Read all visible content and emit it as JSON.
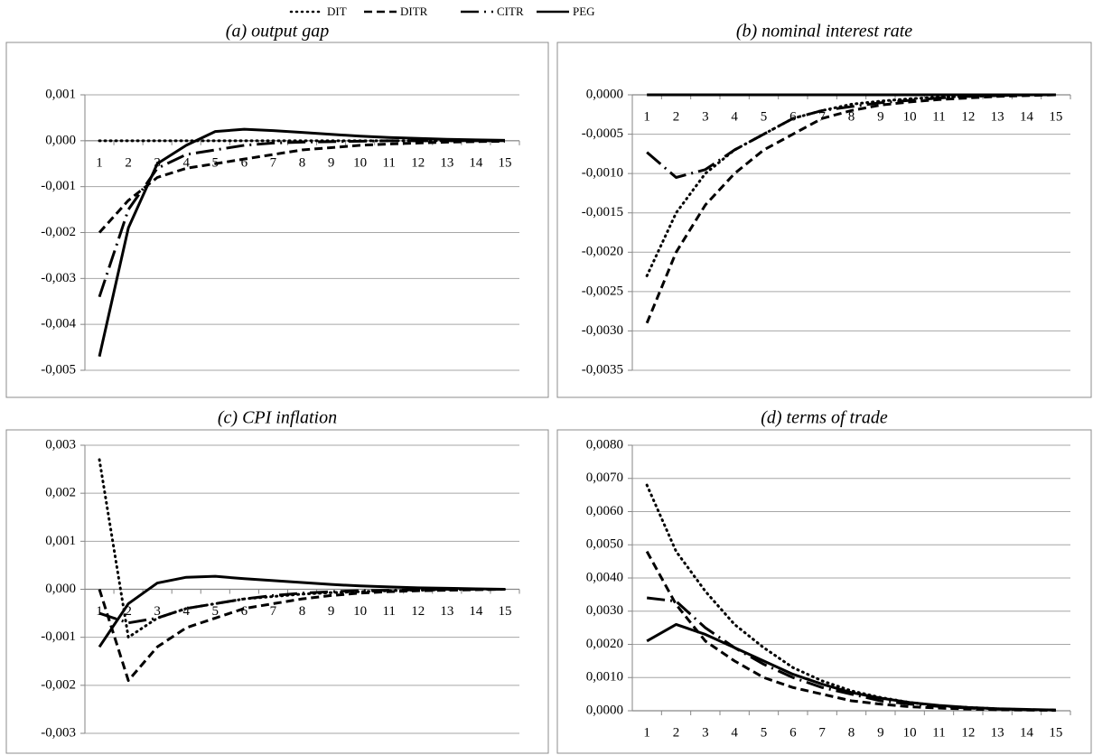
{
  "chart_data": [
    {
      "type": "line",
      "title": "(a) output gap",
      "categories": [
        "1",
        "2",
        "3",
        "4",
        "5",
        "6",
        "7",
        "8",
        "9",
        "10",
        "11",
        "12",
        "13",
        "14",
        "15"
      ],
      "ylim": [
        -0.005,
        0.001
      ],
      "yticks": [
        {
          "value": -0.005,
          "label": "-0,005"
        },
        {
          "value": -0.004,
          "label": "-0,004"
        },
        {
          "value": -0.003,
          "label": "-0,003"
        },
        {
          "value": -0.002,
          "label": "-0,002"
        },
        {
          "value": -0.001,
          "label": "-0,001"
        },
        {
          "value": 0,
          "label": "0,000"
        },
        {
          "value": 0.001,
          "label": "0,001"
        }
      ],
      "grid": true,
      "series": [
        {
          "name": "DIT",
          "color": "#000000",
          "dash": "dot",
          "values": [
            0,
            0,
            0,
            0,
            0,
            0,
            0,
            0,
            0,
            0,
            0,
            0,
            0,
            0,
            0
          ]
        },
        {
          "name": "DITR",
          "color": "#000000",
          "dash": "dash",
          "values": [
            -0.002,
            -0.0013,
            -0.0008,
            -0.0006,
            -0.0005,
            -0.0004,
            -0.0003,
            -0.0002,
            -0.00015,
            -0.0001,
            -7e-05,
            -5e-05,
            -3e-05,
            -2e-05,
            -1e-05
          ]
        },
        {
          "name": "CITR",
          "color": "#000000",
          "dash": "longdash-dot",
          "values": [
            -0.0034,
            -0.0015,
            -0.0006,
            -0.0003,
            -0.0002,
            -0.0001,
            -5e-05,
            -3e-05,
            -2e-05,
            -1e-05,
            0,
            0,
            0,
            0,
            0
          ]
        },
        {
          "name": "PEG",
          "color": "#000000",
          "dash": "solid",
          "values": [
            -0.0047,
            -0.0019,
            -0.0005,
            -0.0001,
            0.0002,
            0.00025,
            0.00022,
            0.00018,
            0.00014,
            0.0001,
            7e-05,
            5e-05,
            3e-05,
            2e-05,
            1e-05
          ]
        }
      ]
    },
    {
      "type": "line",
      "title": "(b) nominal interest rate",
      "categories": [
        "1",
        "2",
        "3",
        "4",
        "5",
        "6",
        "7",
        "8",
        "9",
        "10",
        "11",
        "12",
        "13",
        "14",
        "15"
      ],
      "ylim": [
        -0.0035,
        0
      ],
      "yticks": [
        {
          "value": -0.0035,
          "label": "-0,0035"
        },
        {
          "value": -0.003,
          "label": "-0,0030"
        },
        {
          "value": -0.0025,
          "label": "-0,0025"
        },
        {
          "value": -0.002,
          "label": "-0,0020"
        },
        {
          "value": -0.0015,
          "label": "-0,0015"
        },
        {
          "value": -0.001,
          "label": "-0,0010"
        },
        {
          "value": -0.0005,
          "label": "-0,0005"
        },
        {
          "value": 0,
          "label": "0,0000"
        }
      ],
      "grid": true,
      "series": [
        {
          "name": "DIT",
          "color": "#000000",
          "dash": "dot",
          "values": [
            -0.0023,
            -0.0015,
            -0.001,
            -0.0007,
            -0.0005,
            -0.0003,
            -0.0002,
            -0.00012,
            -8e-05,
            -5e-05,
            -3e-05,
            -2e-05,
            -1e-05,
            0,
            0
          ]
        },
        {
          "name": "DITR",
          "color": "#000000",
          "dash": "dash",
          "values": [
            -0.0029,
            -0.002,
            -0.0014,
            -0.001,
            -0.0007,
            -0.0005,
            -0.0003,
            -0.0002,
            -0.00013,
            -9e-05,
            -6e-05,
            -4e-05,
            -2e-05,
            -1e-05,
            0
          ]
        },
        {
          "name": "CITR",
          "color": "#000000",
          "dash": "longdash-dot",
          "values": [
            -0.00073,
            -0.00105,
            -0.00095,
            -0.0007,
            -0.0005,
            -0.0003,
            -0.0002,
            -0.00015,
            -0.0001,
            -7e-05,
            -4e-05,
            -2e-05,
            -1e-05,
            0,
            0
          ]
        },
        {
          "name": "PEG",
          "color": "#000000",
          "dash": "solid",
          "values": [
            0,
            0,
            0,
            0,
            0,
            0,
            0,
            0,
            0,
            0,
            0,
            0,
            0,
            0,
            0
          ]
        }
      ]
    },
    {
      "type": "line",
      "title": "(c) CPI inflation",
      "categories": [
        "1",
        "2",
        "3",
        "4",
        "5",
        "6",
        "7",
        "8",
        "9",
        "10",
        "11",
        "12",
        "13",
        "14",
        "15"
      ],
      "ylim": [
        -0.003,
        0.003
      ],
      "yticks": [
        {
          "value": -0.003,
          "label": "-0,003"
        },
        {
          "value": -0.002,
          "label": "-0,002"
        },
        {
          "value": -0.001,
          "label": "-0,001"
        },
        {
          "value": 0,
          "label": "0,000"
        },
        {
          "value": 0.001,
          "label": "0,001"
        },
        {
          "value": 0.002,
          "label": "0,002"
        },
        {
          "value": 0.003,
          "label": "0,003"
        }
      ],
      "grid": true,
      "series": [
        {
          "name": "DIT",
          "color": "#000000",
          "dash": "dot",
          "values": [
            0.0027,
            -0.001,
            -0.0006,
            -0.0004,
            -0.0003,
            -0.0002,
            -0.00015,
            -0.0001,
            -7e-05,
            -5e-05,
            -3e-05,
            -2e-05,
            -1e-05,
            0,
            0
          ]
        },
        {
          "name": "DITR",
          "color": "#000000",
          "dash": "dash",
          "values": [
            0,
            -0.0019,
            -0.0012,
            -0.0008,
            -0.0006,
            -0.0004,
            -0.0003,
            -0.0002,
            -0.00013,
            -8e-05,
            -5e-05,
            -3e-05,
            -2e-05,
            -1e-05,
            0
          ]
        },
        {
          "name": "CITR",
          "color": "#000000",
          "dash": "longdash-dot",
          "values": [
            -0.0005,
            -0.0007,
            -0.0006,
            -0.0004,
            -0.0003,
            -0.0002,
            -0.00013,
            -8e-05,
            -5e-05,
            -3e-05,
            -2e-05,
            -1e-05,
            0,
            0,
            0
          ]
        },
        {
          "name": "PEG",
          "color": "#000000",
          "dash": "solid",
          "values": [
            -0.0012,
            -0.0003,
            0.00013,
            0.00025,
            0.00027,
            0.00022,
            0.00018,
            0.00014,
            0.0001,
            7e-05,
            5e-05,
            3e-05,
            2e-05,
            1e-05,
            0
          ]
        }
      ]
    },
    {
      "type": "line",
      "title": "(d) terms of trade",
      "categories": [
        "1",
        "2",
        "3",
        "4",
        "5",
        "6",
        "7",
        "8",
        "9",
        "10",
        "11",
        "12",
        "13",
        "14",
        "15"
      ],
      "ylim": [
        0,
        0.008
      ],
      "yticks": [
        {
          "value": 0,
          "label": "0,0000"
        },
        {
          "value": 0.001,
          "label": "0,0010"
        },
        {
          "value": 0.002,
          "label": "0,0020"
        },
        {
          "value": 0.003,
          "label": "0,0030"
        },
        {
          "value": 0.004,
          "label": "0,0040"
        },
        {
          "value": 0.005,
          "label": "0,0050"
        },
        {
          "value": 0.006,
          "label": "0,0060"
        },
        {
          "value": 0.007,
          "label": "0,0070"
        },
        {
          "value": 0.008,
          "label": "0,0080"
        }
      ],
      "grid": true,
      "series": [
        {
          "name": "DIT",
          "color": "#000000",
          "dash": "dot",
          "values": [
            0.0068,
            0.0048,
            0.0036,
            0.0026,
            0.0019,
            0.0013,
            0.0009,
            0.0006,
            0.0004,
            0.00025,
            0.00015,
            0.0001,
            6e-05,
            3e-05,
            2e-05
          ]
        },
        {
          "name": "DITR",
          "color": "#000000",
          "dash": "dash",
          "values": [
            0.0048,
            0.0032,
            0.0021,
            0.0015,
            0.001,
            0.0007,
            0.0005,
            0.0003,
            0.0002,
            0.00012,
            8e-05,
            5e-05,
            3e-05,
            2e-05,
            1e-05
          ]
        },
        {
          "name": "CITR",
          "color": "#000000",
          "dash": "longdash-dot",
          "values": [
            0.0034,
            0.0033,
            0.0025,
            0.0019,
            0.0014,
            0.001,
            0.0007,
            0.0005,
            0.0003,
            0.0002,
            0.00013,
            8e-05,
            5e-05,
            3e-05,
            2e-05
          ]
        },
        {
          "name": "PEG",
          "color": "#000000",
          "dash": "solid",
          "values": [
            0.0021,
            0.0026,
            0.0023,
            0.0019,
            0.0015,
            0.0011,
            0.0008,
            0.00055,
            0.00038,
            0.00025,
            0.00016,
            0.0001,
            6e-05,
            4e-05,
            2e-05
          ]
        }
      ]
    }
  ]
}
